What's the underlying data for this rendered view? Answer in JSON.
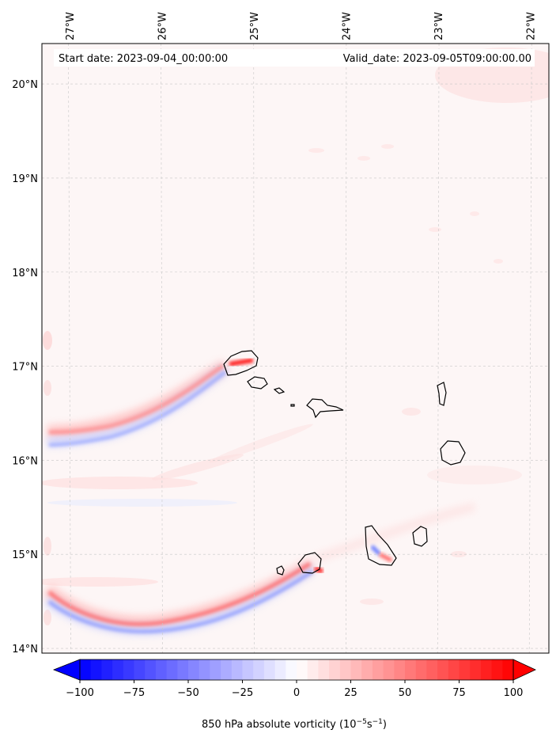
{
  "map": {
    "start_date": "Start date: 2023-09-04_00:00:00",
    "valid_date": "Valid_date: 2023-09-05T09:00:00.00",
    "lon_ticks": [
      "27°W",
      "26°W",
      "25°W",
      "24°W",
      "23°W",
      "22°W"
    ],
    "lat_ticks": [
      "20°N",
      "19°N",
      "18°N",
      "17°N",
      "16°N",
      "15°N",
      "14°N"
    ],
    "extent": {
      "lon_min": -27.3,
      "lon_max": -21.8,
      "lat_min": 13.95,
      "lat_max": 20.43
    }
  },
  "colorbar": {
    "ticks": [
      "−100",
      "−75",
      "−50",
      "−25",
      "0",
      "25",
      "50",
      "75",
      "100"
    ],
    "label_main": "850 hPa absolute vorticity (10",
    "label_exp1": "−5",
    "label_mid": "s",
    "label_exp2": "−1",
    "label_end": ")",
    "range": [
      -100,
      100
    ],
    "colormap": "bwr",
    "colors": {
      "min": "#0000ff",
      "mid": "#ffffff",
      "max": "#ff0000"
    }
  },
  "background_color": "#fdf5f5"
}
